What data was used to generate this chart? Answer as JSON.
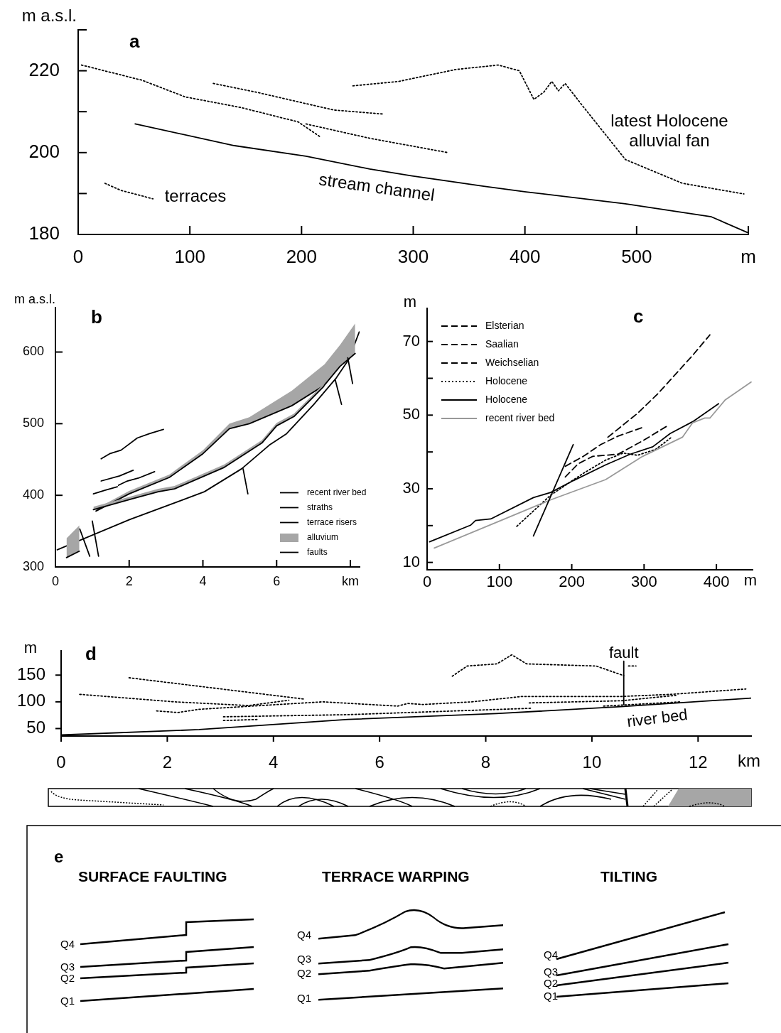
{
  "chart_data": [
    {
      "type": "line",
      "title": "a",
      "ylabel": "m a.s.l.",
      "xlim": [
        0,
        600
      ],
      "ylim": [
        180,
        230
      ],
      "xticks": [
        0,
        100,
        200,
        300,
        400,
        500,
        {
          "value": 600,
          "label": "m"
        }
      ],
      "yticks": [
        180,
        {
          "value": 190,
          "label": null
        },
        200,
        {
          "value": 210,
          "label": null
        },
        220,
        {
          "value": 230,
          "label": null
        }
      ],
      "series": [
        {
          "color": "#000000",
          "line_style": "solid",
          "x": [
            51,
            140,
            204,
            261,
            299,
            363,
            401,
            490,
            567,
            599
          ],
          "values": [
            207.0,
            201.7,
            199.1,
            196.0,
            194.3,
            191.8,
            190.4,
            187.5,
            184.3,
            180.5
          ]
        },
        {
          "color": "#000000",
          "line_style": "dotted",
          "x": [
            3,
            57,
            96,
            146,
            197,
            217
          ],
          "values": [
            221.4,
            217.7,
            213.6,
            211,
            207.5,
            203.8
          ]
        },
        {
          "color": "#000000",
          "line_style": "dotted",
          "x": [
            121,
            159,
            229,
            274
          ],
          "values": [
            216.9,
            214.8,
            210.4,
            209.4
          ]
        },
        {
          "color": "#000000",
          "line_style": "dotted",
          "x": [
            204,
            261,
            331
          ],
          "values": [
            207,
            203.5,
            200
          ]
        },
        {
          "color": "#000000",
          "line_style": "dotted",
          "x": [
            246,
            287,
            338,
            376,
            395,
            408,
            417,
            424,
            430,
            436,
            452,
            490,
            541,
            596
          ],
          "values": [
            216.3,
            217.4,
            220.3,
            221.4,
            220,
            213,
            214.8,
            217.4,
            215.1,
            216.9,
            211.3,
            198.3,
            192.5,
            189.9
          ]
        },
        {
          "color": "#000000",
          "line_style": "dotted",
          "x": [
            24,
            38,
            67
          ],
          "values": [
            192.5,
            190.8,
            188.7
          ]
        }
      ],
      "annotations": [
        "terraces",
        "stream channel",
        "latest Holocene alluvial fan"
      ]
    },
    {
      "type": "line",
      "title": "b",
      "ylabel": "m a.s.l.",
      "xlim": [
        0,
        8.25
      ],
      "ylim": [
        300,
        662
      ],
      "xticks": [
        0,
        2,
        4,
        6,
        {
          "value": 8,
          "label": "km"
        }
      ],
      "yticks": [
        300,
        400,
        500,
        600
      ],
      "legend": "bottom right",
      "series": [
        {
          "name": "recent river bed",
          "color": "#000000",
          "line_style": "solid",
          "x": [
            0.05,
            2.01,
            4.04,
            5.05,
            5.8,
            6.27,
            7.01,
            7.62,
            7.96,
            8.24
          ],
          "values": [
            324,
            366,
            405,
            437,
            470,
            486,
            527,
            564,
            590,
            628
          ]
        },
        {
          "name": "straths",
          "color": "#000000",
          "line_style": "solid",
          "x": [
            1.1,
            2.0,
            3.09,
            4.0,
            4.72,
            5.26,
            6.41,
            7.3,
            7.72,
            8.13
          ],
          "values": [
            378,
            402,
            425,
            458,
            493,
            500,
            525,
            554,
            580,
            598
          ],
          "lower": [
            378,
            402,
            425,
            458,
            493,
            500,
            525,
            554,
            580,
            598
          ],
          "upper": [
            381,
            406,
            429,
            463,
            500,
            509,
            546,
            583,
            610,
            640
          ]
        },
        {
          "color": "#000000",
          "line_style": "solid",
          "x": [
            1.03,
            2.08,
            2.79,
            3.23,
            4.58,
            5.6,
            6.0,
            6.47,
            7.28
          ],
          "values": [
            380,
            395,
            405,
            409,
            439,
            473,
            497,
            510,
            552
          ],
          "lower": [
            380,
            395,
            405,
            409,
            439,
            473,
            497,
            510,
            552
          ],
          "upper": [
            384,
            399,
            409,
            413,
            443,
            477,
            501,
            514,
            556
          ]
        },
        {
          "color": "#000000",
          "line_style": "solid",
          "x": [
            0.3,
            0.65
          ],
          "values": [
            313,
            322
          ],
          "lower": [
            313,
            322
          ],
          "upper": [
            340,
            358
          ]
        },
        {
          "name": "terrace risers",
          "color": "#000000",
          "line_style": "solid",
          "x": [
            1.24,
            1.47,
            1.78,
            2.22,
            2.55,
            2.93
          ],
          "values": [
            451,
            458,
            463,
            480,
            486,
            492
          ]
        },
        {
          "color": "#000000",
          "line_style": "solid",
          "x": [
            1.24,
            1.74,
            2.11
          ],
          "values": [
            420,
            427,
            435
          ]
        },
        {
          "color": "#000000",
          "line_style": "solid",
          "x": [
            1.71,
            1.95,
            2.25,
            2.69
          ],
          "values": [
            414,
            420,
            424,
            433
          ]
        },
        {
          "color": "#000000",
          "line_style": "solid",
          "x": [
            1.03,
            1.34,
            1.68
          ],
          "values": [
            402,
            407,
            412
          ]
        },
        {
          "name": "faults",
          "color": "#000000",
          "line_style": "solid",
          "x": [
            0.66,
            0.93
          ],
          "values": [
            353,
            315
          ]
        },
        {
          "color": "#000000",
          "line_style": "solid",
          "x": [
            1.0,
            1.17
          ],
          "values": [
            364,
            315
          ]
        },
        {
          "color": "#000000",
          "line_style": "solid",
          "x": [
            5.09,
            5.22
          ],
          "values": [
            437,
            402
          ]
        },
        {
          "color": "#000000",
          "line_style": "solid",
          "x": [
            7.59,
            7.76
          ],
          "values": [
            561,
            527
          ]
        },
        {
          "color": "#000000",
          "line_style": "solid",
          "x": [
            7.93,
            8.06
          ],
          "values": [
            592,
            556
          ]
        }
      ],
      "annotations": [
        "alluvium"
      ]
    },
    {
      "type": "line",
      "title": "c",
      "ylabel": "m",
      "xlabel": "m",
      "xlim": [
        0,
        450
      ],
      "ylim": [
        8,
        79
      ],
      "xticks": [
        0,
        100,
        200,
        300,
        400
      ],
      "yticks": [
        10,
        {
          "value": 20,
          "label": null
        },
        30,
        {
          "value": 40,
          "label": null
        },
        50,
        {
          "value": 60,
          "label": null
        },
        70
      ],
      "legend": "top left",
      "series": [
        {
          "name": "Elsterian",
          "color": "#000000",
          "line_style": "dashed",
          "x": [
            250,
            291,
            319,
            367,
            391
          ],
          "values": [
            44,
            50.5,
            55.8,
            66.2,
            71.8
          ]
        },
        {
          "name": "Saalian",
          "color": "#000000",
          "line_style": "dashed",
          "x": [
            191,
            216,
            240,
            264,
            297
          ],
          "values": [
            36.1,
            38.8,
            42,
            44.3,
            46.6
          ]
        },
        {
          "name": "Weichselian",
          "color": "#000000",
          "line_style": "dashed",
          "x": [
            191,
            209,
            229,
            264,
            298,
            334
          ],
          "values": [
            33.2,
            36.8,
            38.8,
            39.4,
            43,
            47.3
          ]
        },
        {
          "name": "Holocene",
          "color": "#000000",
          "line_style": "dotted",
          "x": [
            124,
            171,
            216,
            247,
            271,
            291,
            316,
            338
          ],
          "values": [
            19.8,
            28.3,
            34.2,
            37.8,
            39.7,
            39.1,
            40.7,
            44
          ]
        },
        {
          "name": "Holocene",
          "color": "#000000",
          "line_style": "solid",
          "x": [
            3.4,
            60,
            67,
            88,
            147,
            171,
            202,
            247,
            281,
            312,
            336,
            367,
            403
          ],
          "values": [
            15.6,
            20.1,
            21.4,
            21.8,
            27.6,
            29,
            32.2,
            36.5,
            39.4,
            41.4,
            45,
            48.2,
            53.1
          ]
        },
        {
          "name": "recent river bed",
          "color": "#999999",
          "line_style": "solid",
          "x": [
            10,
            102,
            171,
            247,
            298,
            353,
            367,
            384,
            391,
            412,
            448
          ],
          "values": [
            13.9,
            21.4,
            27,
            32.5,
            38.8,
            44,
            47.9,
            49.2,
            49.2,
            54.1,
            59
          ]
        },
        {
          "color": "#000000",
          "line_style": "solid",
          "x": [
            147,
            202
          ],
          "values": [
            17.2,
            42
          ]
        }
      ]
    },
    {
      "type": "line",
      "title": "d",
      "ylabel": "m",
      "xlabel": "km",
      "xlim": [
        0,
        13
      ],
      "ylim": [
        36,
        195
      ],
      "xticks": [
        0,
        2,
        4,
        6,
        8,
        10,
        12
      ],
      "yticks": [
        50,
        100,
        150
      ],
      "series": [
        {
          "color": "#000000",
          "line_style": "solid",
          "x": [
            0,
            2.6,
            5.4,
            8.2,
            10.55,
            13
          ],
          "values": [
            38,
            48,
            67,
            78,
            91,
            107
          ]
        },
        {
          "color": "#000000",
          "line_style": "dotted",
          "x": [
            1.28,
            4.59
          ],
          "values": [
            145,
            105
          ]
        },
        {
          "color": "#000000",
          "line_style": "dotted",
          "x": [
            0.35,
            2.13,
            3.53,
            4.29
          ],
          "values": [
            114,
            100,
            93,
            103
          ]
        },
        {
          "color": "#000000",
          "line_style": "dotted",
          "x": [
            1.8,
            2.2,
            2.6,
            4.09,
            4.93,
            6.34,
            6.53,
            6.81,
            7.74,
            8.68,
            10.55,
            11.49,
            12.9
          ],
          "values": [
            83,
            80,
            86,
            95,
            100,
            92,
            97,
            95,
            100,
            110,
            110,
            114,
            124
          ]
        },
        {
          "color": "#000000",
          "line_style": "dotted",
          "x": [
            3.06,
            5.4,
            8.87
          ],
          "values": [
            72,
            76,
            88
          ]
        },
        {
          "color": "#000000",
          "line_style": "dotted",
          "x": [
            3.06,
            3.72
          ],
          "values": [
            65,
            67
          ]
        },
        {
          "color": "#000000",
          "line_style": "dotted",
          "x": [
            7.37,
            7.65,
            8.21,
            8.49,
            8.77,
            10.08,
            10.6
          ],
          "values": [
            148,
            167,
            171,
            188,
            171,
            167,
            149
          ]
        },
        {
          "color": "#000000",
          "line_style": "dotted",
          "x": [
            10.69,
            10.83
          ],
          "values": [
            167,
            167
          ]
        },
        {
          "color": "#000000",
          "line_style": "dotted",
          "x": [
            8.82,
            10.55,
            11.58
          ],
          "values": [
            98,
            102,
            112
          ]
        },
        {
          "color": "#000000",
          "line_style": "dotted",
          "x": [
            10.22,
            11.68
          ],
          "values": [
            92,
            100
          ]
        },
        {
          "color": "#000000",
          "line_style": "solid",
          "x": [
            10.6,
            10.6
          ],
          "values": [
            95,
            176
          ]
        }
      ],
      "annotations": [
        {
          "text": "fault",
          "x": 10.6,
          "y": 176
        },
        "river bed"
      ]
    },
    {
      "type": "other",
      "title": "e",
      "annotations": [
        "SURFACE FAULTING",
        "TERRACE WARPING",
        "TILTING",
        "Q4",
        "Q3",
        "Q2",
        "Q1",
        "Q4",
        "Q3",
        "Q2",
        "Q1",
        "Q4",
        "Q3",
        "Q2",
        "Q1"
      ]
    }
  ]
}
